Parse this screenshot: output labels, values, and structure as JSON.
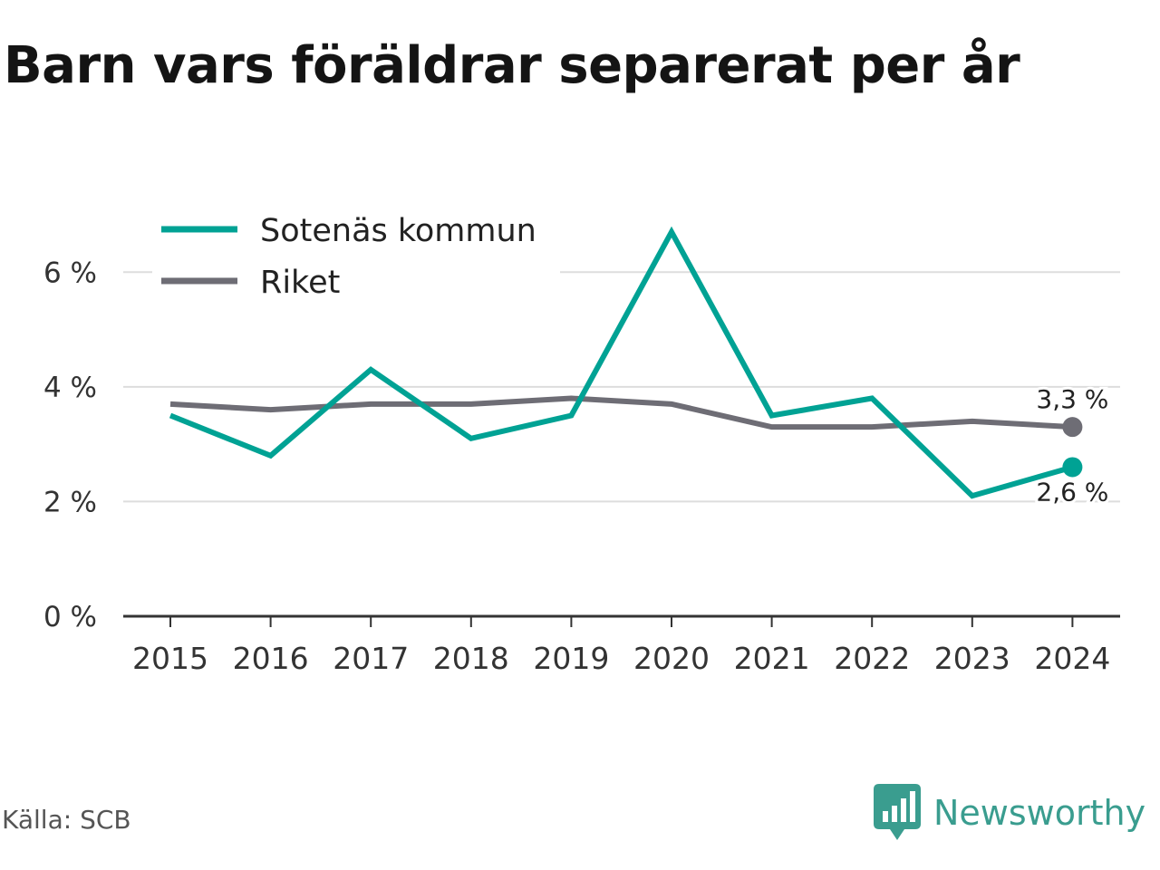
{
  "chart_data": {
    "type": "line",
    "title": "Barn vars föräldrar separerat per år",
    "categories": [
      "2015",
      "2016",
      "2017",
      "2018",
      "2019",
      "2020",
      "2021",
      "2022",
      "2023",
      "2024"
    ],
    "series": [
      {
        "name": "Sotenäs kommun",
        "color": "#00a294",
        "values": [
          3.5,
          2.8,
          4.3,
          3.1,
          3.5,
          6.7,
          3.5,
          3.8,
          2.1,
          2.6
        ],
        "end_label": "2,6 %"
      },
      {
        "name": "Riket",
        "color": "#6e6d75",
        "values": [
          3.7,
          3.6,
          3.7,
          3.7,
          3.8,
          3.7,
          3.3,
          3.3,
          3.4,
          3.3
        ],
        "end_label": "3,3 %"
      }
    ],
    "y_ticks": [
      {
        "value": 0,
        "label": "0 %"
      },
      {
        "value": 2,
        "label": "2 %"
      },
      {
        "value": 4,
        "label": "4 %"
      },
      {
        "value": 6,
        "label": "6 %"
      }
    ],
    "ylim": [
      0,
      7
    ],
    "grid": true,
    "legend_position": "top-left"
  },
  "footer": {
    "source": "Källa: SCB",
    "brand": "Newsworthy"
  },
  "colors": {
    "brand": "#3a9d8f",
    "grid": "#dddddd",
    "axis": "#333333"
  }
}
